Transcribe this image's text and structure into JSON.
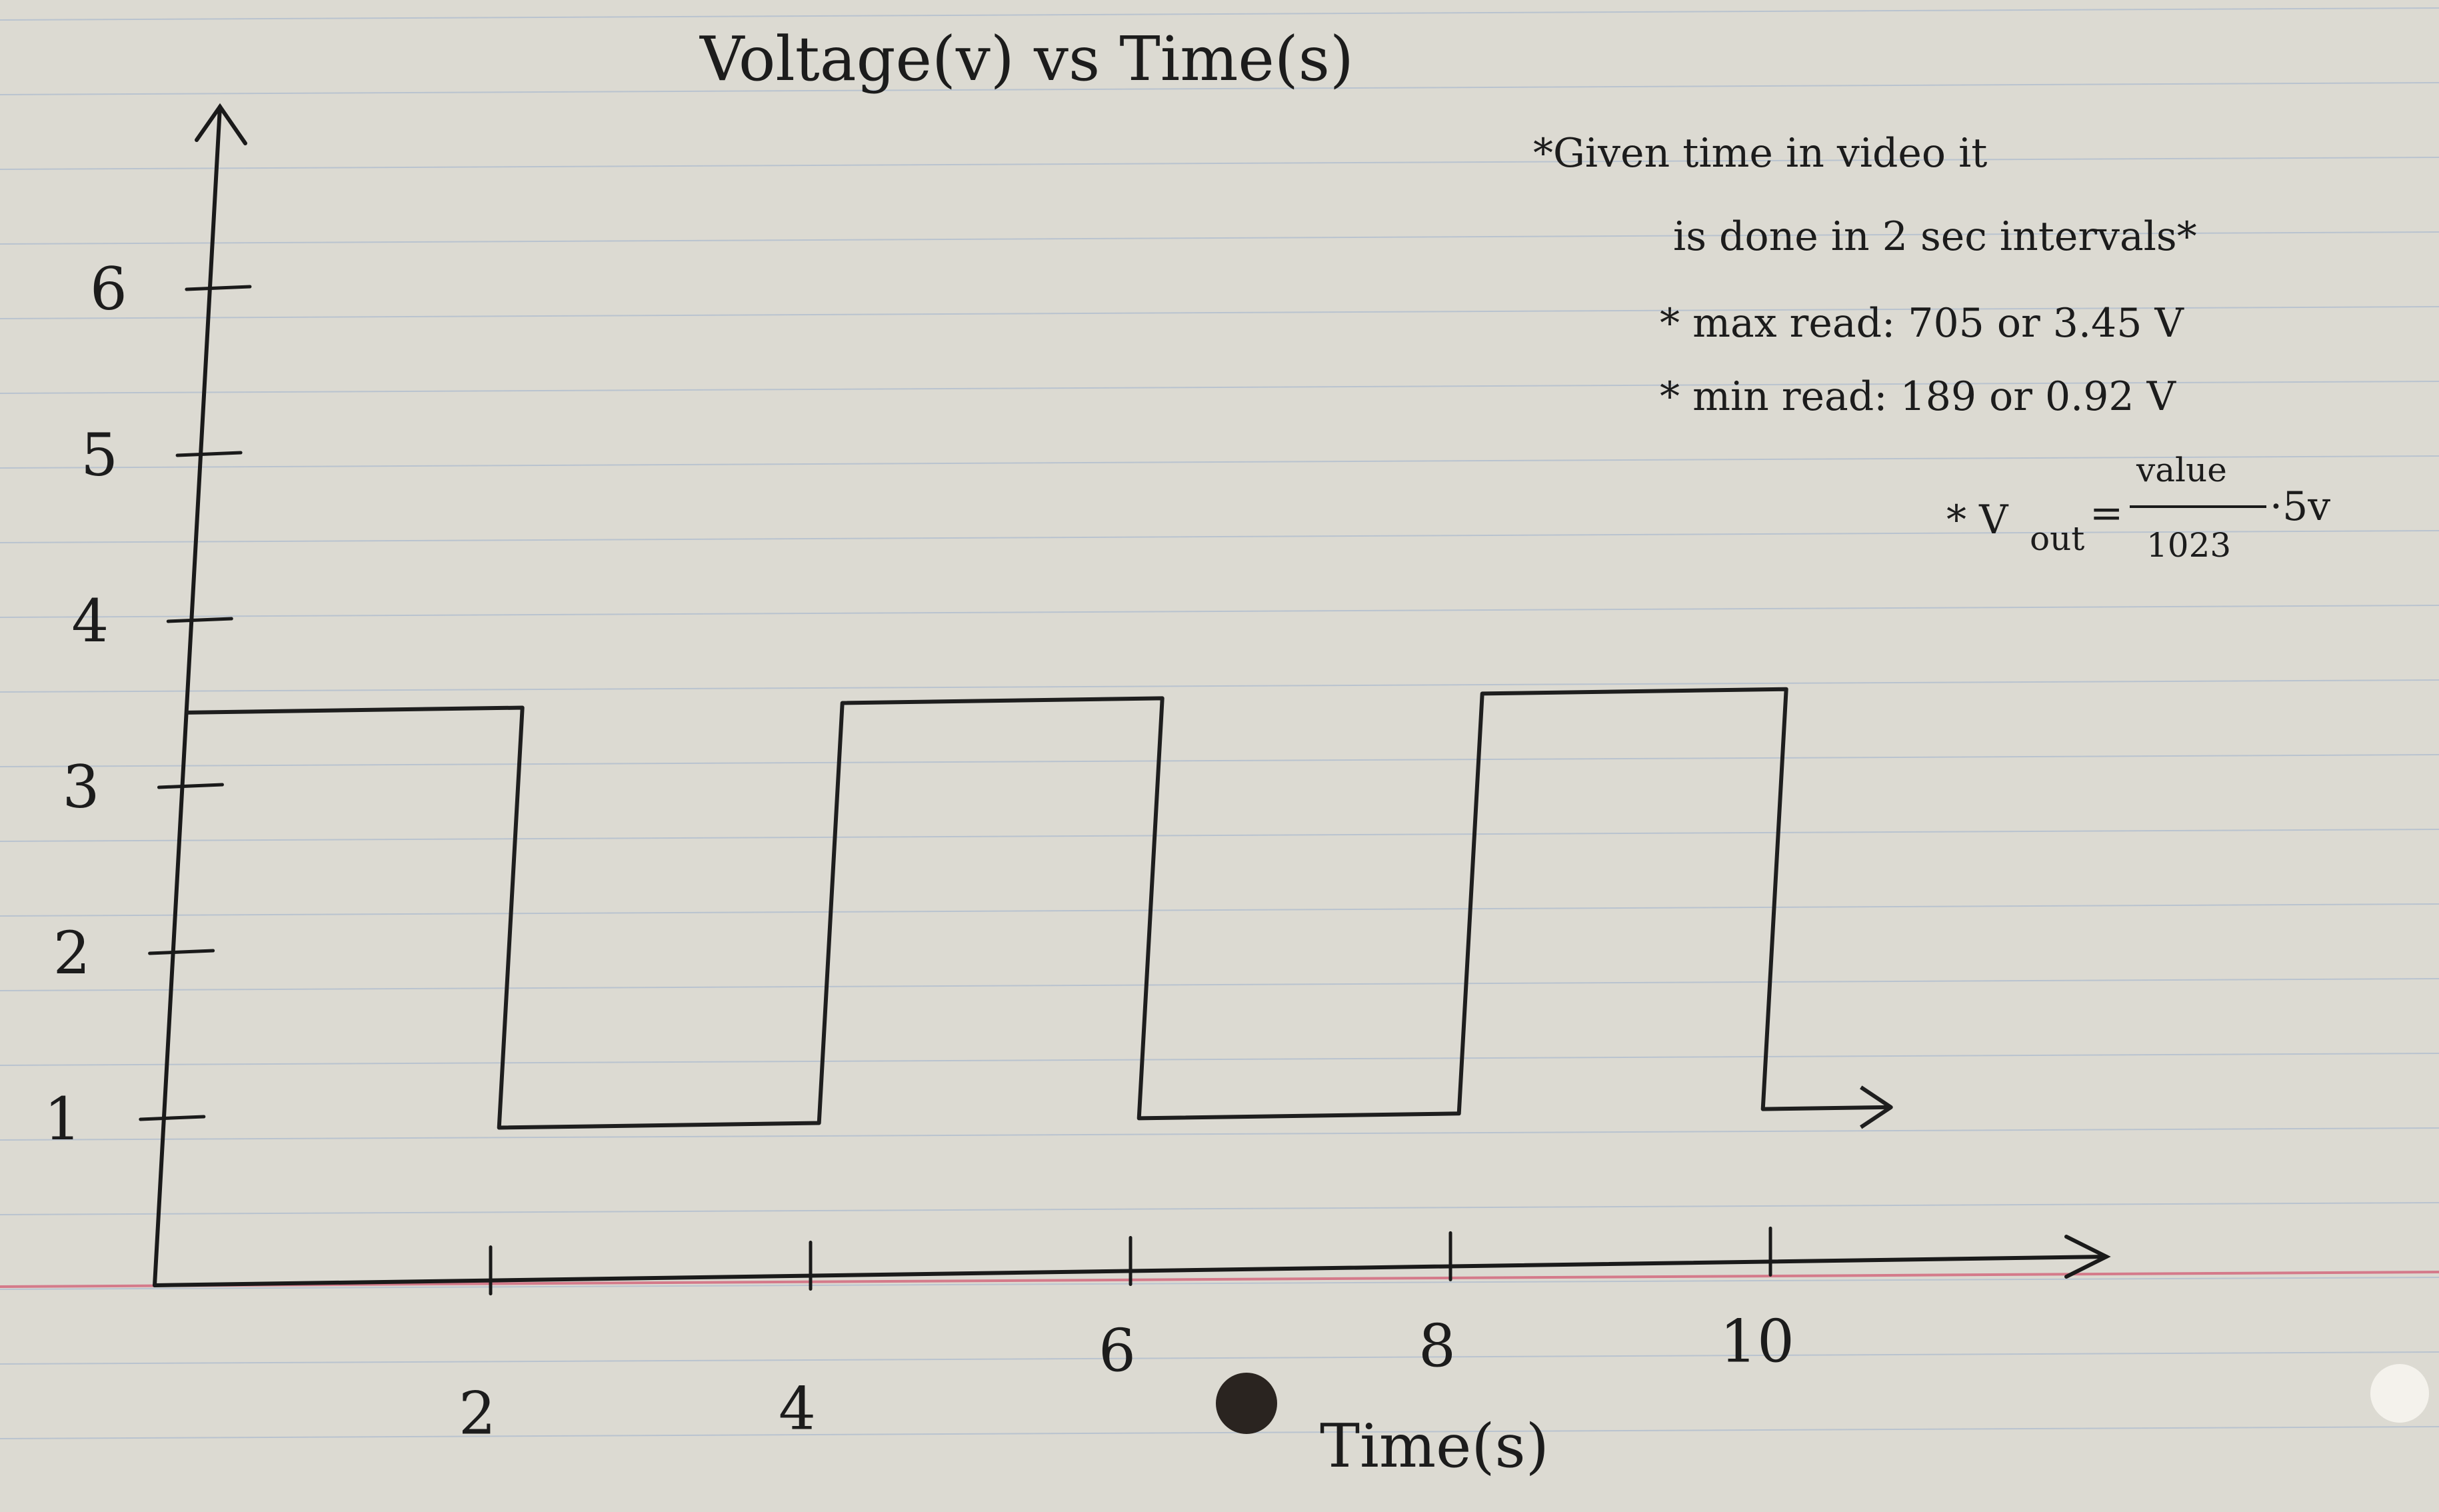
{
  "chart_data": {
    "type": "line",
    "title": "Voltage(v) vs Time(s)",
    "xlabel": "Time(s)",
    "ylabel": "",
    "x_ticks": [
      2,
      4,
      6,
      8,
      10
    ],
    "y_ticks": [
      1,
      2,
      3,
      4,
      5,
      6
    ],
    "xlim": [
      0,
      11.5
    ],
    "ylim": [
      0,
      6.9
    ],
    "grid": false,
    "series": [
      {
        "step_points": [
          {
            "x": 0.0,
            "y": 3.45
          },
          {
            "x": 2.1,
            "y": 3.45
          },
          {
            "x": 2.1,
            "y": 0.92
          },
          {
            "x": 4.1,
            "y": 0.92
          },
          {
            "x": 4.1,
            "y": 3.45
          },
          {
            "x": 6.1,
            "y": 3.45
          },
          {
            "x": 6.1,
            "y": 0.92
          },
          {
            "x": 8.1,
            "y": 0.92
          },
          {
            "x": 8.1,
            "y": 3.45
          },
          {
            "x": 10.0,
            "y": 3.45
          },
          {
            "x": 10.0,
            "y": 0.92
          },
          {
            "x": 10.8,
            "y": 0.92
          }
        ]
      }
    ],
    "annotations": {
      "note1_line1": "*Given time in video it",
      "note1_line2": "is done in 2 sec intervals*",
      "note2": "* max read: 705 or 3.45 V",
      "note3": "* min read: 189 or 0.92 V",
      "formula_prefix": "* V",
      "formula_sub": "out",
      "formula_eq": "=",
      "formula_num": "value",
      "formula_den": "1023",
      "formula_suffix": "·5v"
    }
  }
}
